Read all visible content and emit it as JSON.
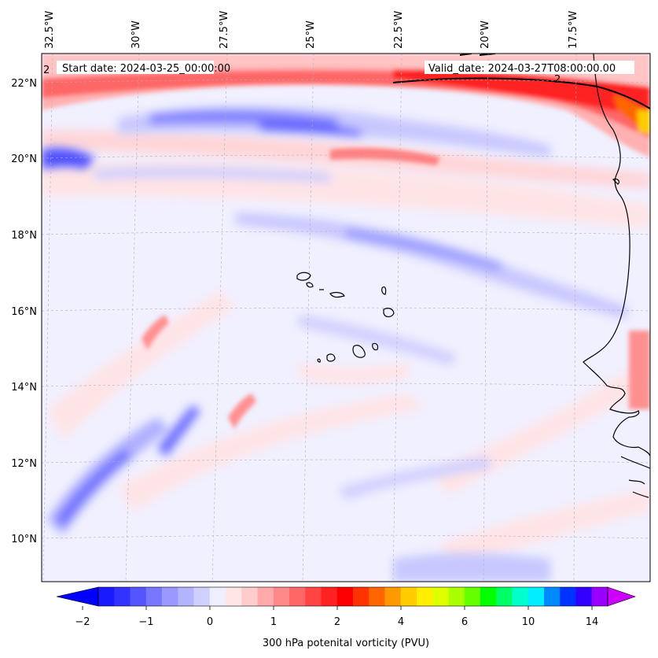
{
  "map": {
    "header": {
      "start_date": "Start date: 2024-03-25_00:00:00",
      "valid_date": "Valid_date: 2024-03-27T08:00:00.00"
    },
    "contour_label": "2",
    "lon_labels": [
      "32.5°W",
      "30°W",
      "27.5°W",
      "25°W",
      "22.5°W",
      "20°W",
      "17.5°W"
    ],
    "lat_labels": [
      "22°N",
      "20°N",
      "18°N",
      "16°N",
      "14°N",
      "12°N",
      "10°N"
    ],
    "colorbar": {
      "label": "300 hPa potenital vorticity (PVU)",
      "ticks": [
        "−2",
        "−1",
        "0",
        "1",
        "2",
        "4",
        "6",
        "10",
        "14"
      ],
      "colors": [
        "#1a1aff",
        "#3333ff",
        "#5555ff",
        "#7777ff",
        "#9999ff",
        "#b3b3ff",
        "#d0d0ff",
        "#eeeeff",
        "#ffe6e6",
        "#ffcccc",
        "#ffaaaa",
        "#ff8888",
        "#ff6666",
        "#ff4444",
        "#ff2222",
        "#ff0000",
        "#ff3300",
        "#ff6600",
        "#ff9900",
        "#ffcc00",
        "#ffee00",
        "#ddff00",
        "#aaff00",
        "#66ff00",
        "#00ff00",
        "#00ff66",
        "#00ffcc",
        "#00eeff",
        "#0088ff",
        "#0033ff",
        "#3300ff",
        "#9900ff"
      ],
      "extend_low_color": "#0000ff",
      "extend_high_color": "#cc00ff"
    }
  }
}
